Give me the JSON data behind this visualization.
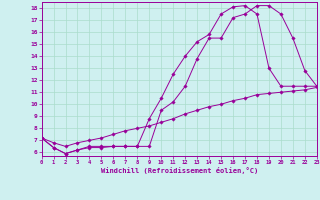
{
  "xlabel": "Windchill (Refroidissement éolien,°C)",
  "bg_color": "#cff0f0",
  "line_color": "#990099",
  "grid_color": "#aaddcc",
  "xlim": [
    0,
    23
  ],
  "ylim": [
    6,
    18.5
  ],
  "yticks": [
    6,
    7,
    8,
    9,
    10,
    11,
    12,
    13,
    14,
    15,
    16,
    17,
    18
  ],
  "xticks": [
    0,
    1,
    2,
    3,
    4,
    5,
    6,
    7,
    8,
    9,
    10,
    11,
    12,
    13,
    14,
    15,
    16,
    17,
    18,
    19,
    20,
    21,
    22,
    23
  ],
  "line1_x": [
    0,
    1,
    2,
    3,
    4,
    5,
    6,
    7,
    8,
    9,
    10,
    11,
    12,
    13,
    14,
    15,
    16,
    17,
    18,
    19,
    20,
    21,
    22,
    23
  ],
  "line1_y": [
    7.2,
    6.4,
    5.9,
    6.2,
    6.4,
    6.4,
    6.5,
    6.5,
    6.5,
    6.5,
    9.5,
    10.2,
    11.5,
    13.8,
    15.5,
    15.5,
    17.2,
    17.5,
    18.2,
    18.2,
    17.5,
    15.5,
    12.8,
    11.5
  ],
  "line2_x": [
    0,
    1,
    2,
    3,
    4,
    5,
    6,
    7,
    8,
    9,
    10,
    11,
    12,
    13,
    14,
    15,
    16,
    17,
    18,
    19,
    20,
    21,
    22,
    23
  ],
  "line2_y": [
    7.2,
    6.4,
    5.9,
    6.2,
    6.5,
    6.5,
    6.5,
    6.5,
    6.5,
    8.8,
    10.5,
    12.5,
    14.0,
    15.2,
    15.8,
    17.5,
    18.1,
    18.2,
    17.5,
    13.0,
    11.5,
    11.5,
    11.5,
    11.5
  ],
  "line3_x": [
    0,
    1,
    2,
    3,
    4,
    5,
    6,
    7,
    8,
    9,
    10,
    11,
    12,
    13,
    14,
    15,
    16,
    17,
    18,
    19,
    20,
    21,
    22,
    23
  ],
  "line3_y": [
    7.2,
    6.8,
    6.5,
    6.8,
    7.0,
    7.2,
    7.5,
    7.8,
    8.0,
    8.2,
    8.5,
    8.8,
    9.2,
    9.5,
    9.8,
    10.0,
    10.3,
    10.5,
    10.8,
    10.9,
    11.0,
    11.1,
    11.2,
    11.4
  ],
  "ytick_labels": [
    "6",
    "7",
    "8",
    "9",
    "10",
    "11",
    "12",
    "13",
    "14",
    "15",
    "16",
    "17",
    "18"
  ]
}
